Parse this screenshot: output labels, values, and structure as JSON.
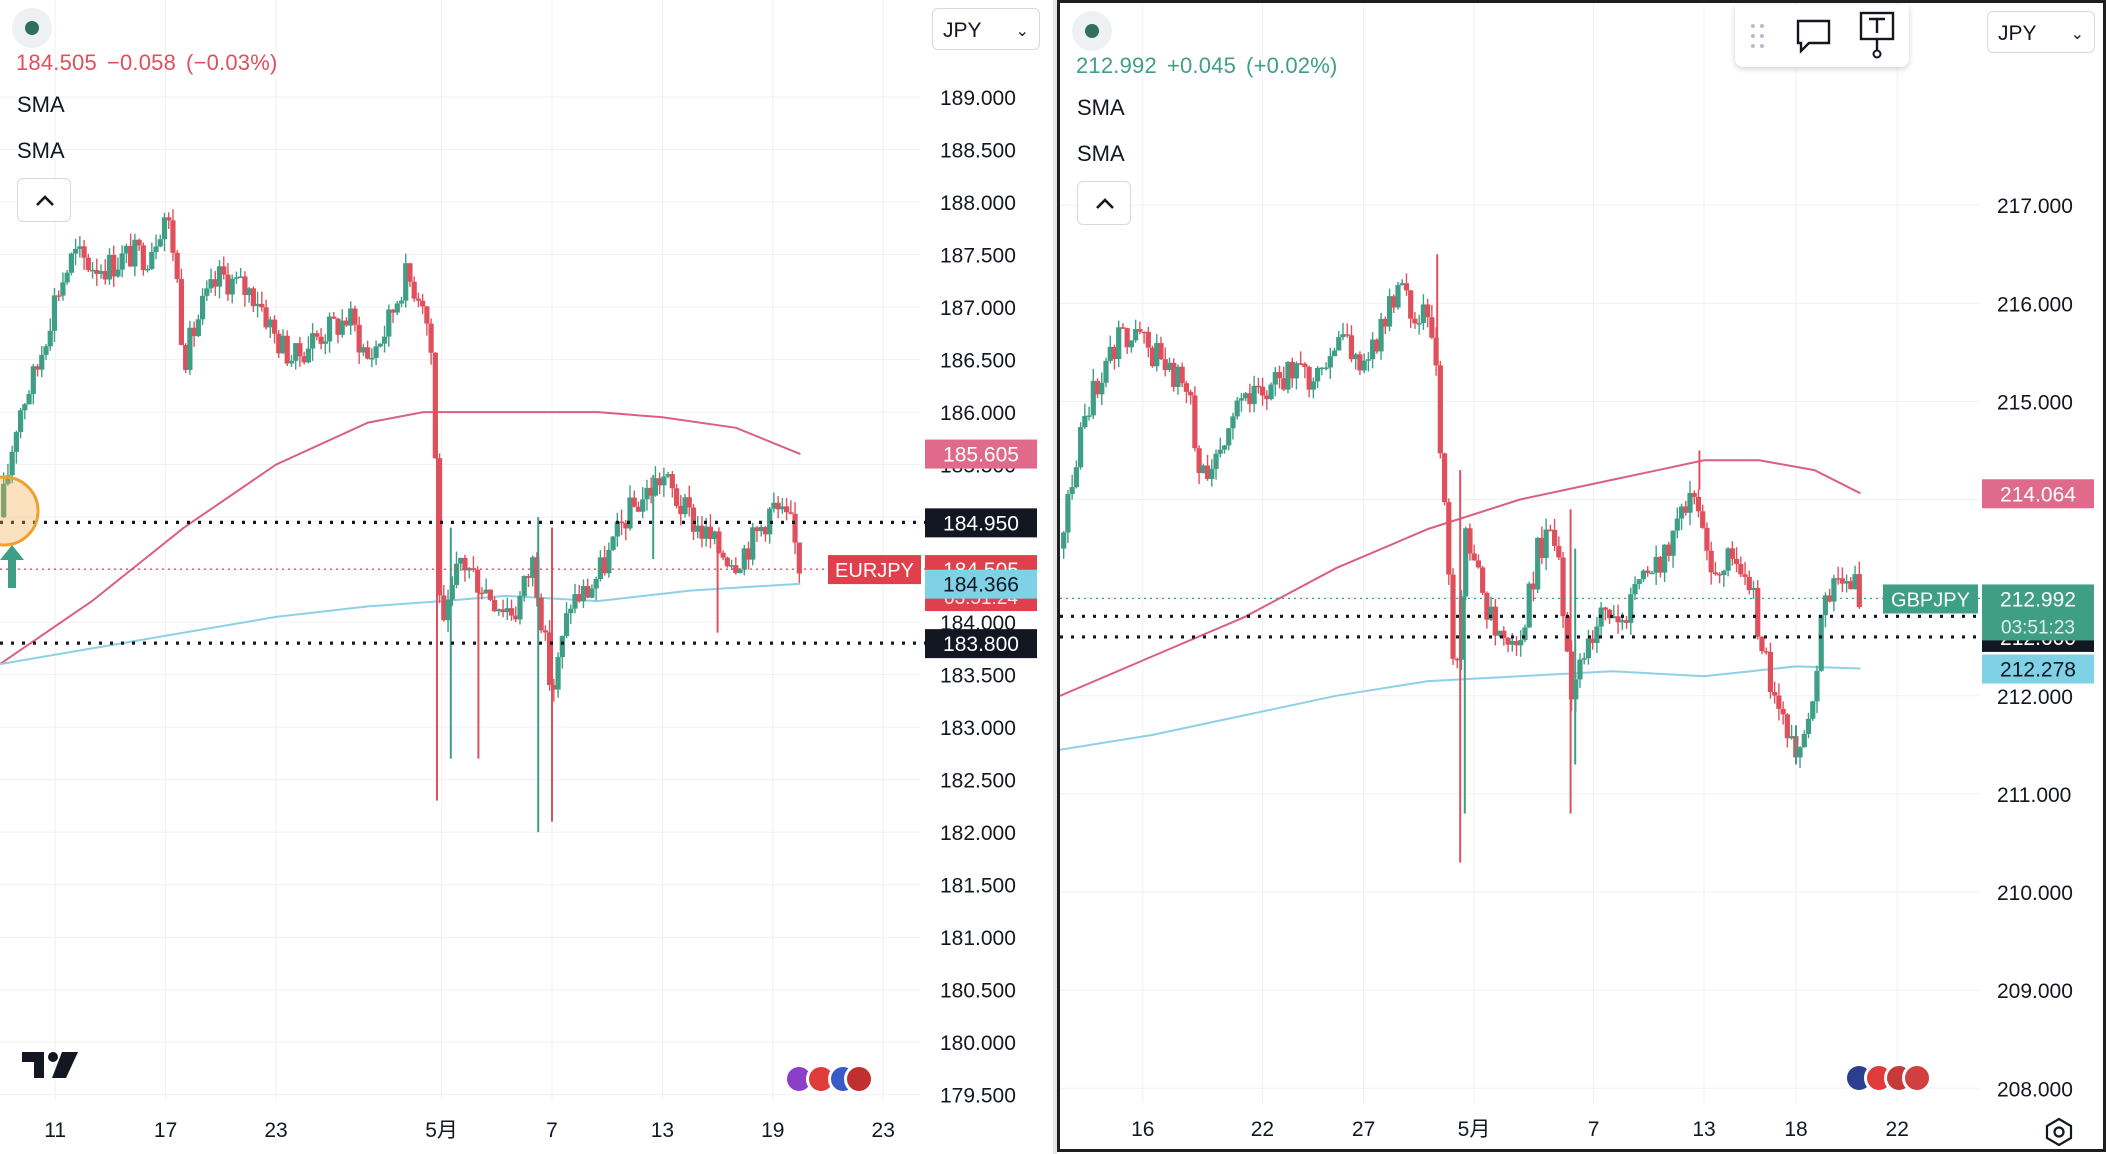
{
  "chart_data": [
    {
      "type": "candlestick",
      "symbol": "EURJPY",
      "currency": "JPY",
      "header": {
        "last": "184.505",
        "change": "−0.058",
        "change_pct": "(−0.03%)"
      },
      "indicators": [
        "SMA",
        "SMA"
      ],
      "y_ticks": [
        "189.000",
        "188.500",
        "188.000",
        "187.500",
        "187.000",
        "186.500",
        "186.000",
        "185.500",
        "185.000",
        "184.500",
        "184.000",
        "183.500",
        "183.000",
        "182.500",
        "182.000",
        "181.500",
        "181.000",
        "180.500",
        "180.000",
        "179.500"
      ],
      "ylim": [
        179.45,
        189.4
      ],
      "x_ticks": [
        {
          "label": "11",
          "pos": 0.06
        },
        {
          "label": "17",
          "pos": 0.18
        },
        {
          "label": "23",
          "pos": 0.3
        },
        {
          "label": "5月",
          "pos": 0.48
        },
        {
          "label": "7",
          "pos": 0.6
        },
        {
          "label": "13",
          "pos": 0.72
        },
        {
          "label": "19",
          "pos": 0.84
        },
        {
          "label": "23",
          "pos": 0.96
        }
      ],
      "path": [
        [
          0.0,
          185.0
        ],
        [
          0.02,
          186.0
        ],
        [
          0.04,
          186.4
        ],
        [
          0.06,
          187.1
        ],
        [
          0.08,
          187.5
        ],
        [
          0.1,
          187.4
        ],
        [
          0.12,
          187.4
        ],
        [
          0.14,
          187.5
        ],
        [
          0.16,
          187.5
        ],
        [
          0.18,
          187.9
        ],
        [
          0.19,
          187.5
        ],
        [
          0.2,
          186.5
        ],
        [
          0.22,
          187.0
        ],
        [
          0.24,
          187.3
        ],
        [
          0.26,
          187.2
        ],
        [
          0.28,
          187.1
        ],
        [
          0.3,
          186.7
        ],
        [
          0.32,
          186.5
        ],
        [
          0.34,
          186.7
        ],
        [
          0.36,
          186.8
        ],
        [
          0.38,
          186.9
        ],
        [
          0.4,
          186.5
        ],
        [
          0.42,
          186.8
        ],
        [
          0.44,
          187.3
        ],
        [
          0.46,
          187.1
        ],
        [
          0.47,
          186.5
        ],
        [
          0.475,
          185.0
        ],
        [
          0.48,
          183.8
        ],
        [
          0.5,
          184.6
        ],
        [
          0.52,
          184.4
        ],
        [
          0.54,
          184.2
        ],
        [
          0.56,
          184.1
        ],
        [
          0.58,
          184.6
        ],
        [
          0.6,
          183.3
        ],
        [
          0.62,
          184.2
        ],
        [
          0.64,
          184.3
        ],
        [
          0.66,
          184.6
        ],
        [
          0.68,
          185.0
        ],
        [
          0.7,
          185.2
        ],
        [
          0.72,
          185.4
        ],
        [
          0.74,
          185.1
        ],
        [
          0.76,
          184.9
        ],
        [
          0.78,
          184.7
        ],
        [
          0.8,
          184.6
        ],
        [
          0.82,
          184.8
        ],
        [
          0.84,
          185.1
        ],
        [
          0.86,
          184.9
        ],
        [
          0.87,
          184.5
        ]
      ],
      "wicks": [
        [
          0.475,
          182.3,
          185.9
        ],
        [
          0.49,
          182.7,
          184.9
        ],
        [
          0.52,
          182.7,
          184.5
        ],
        [
          0.585,
          182.0,
          185.0
        ],
        [
          0.6,
          182.1,
          184.9
        ],
        [
          0.71,
          185.4,
          184.6
        ],
        [
          0.78,
          183.9,
          184.8
        ]
      ],
      "sma_long": [
        [
          0.0,
          183.6
        ],
        [
          0.1,
          184.2
        ],
        [
          0.2,
          184.9
        ],
        [
          0.3,
          185.5
        ],
        [
          0.4,
          185.9
        ],
        [
          0.46,
          186.0
        ],
        [
          0.55,
          186.0
        ],
        [
          0.65,
          186.0
        ],
        [
          0.72,
          185.95
        ],
        [
          0.8,
          185.85
        ],
        [
          0.87,
          185.6
        ]
      ],
      "sma_short": [
        [
          0.0,
          183.6
        ],
        [
          0.1,
          183.75
        ],
        [
          0.2,
          183.9
        ],
        [
          0.3,
          184.05
        ],
        [
          0.4,
          184.15
        ],
        [
          0.48,
          184.2
        ],
        [
          0.55,
          184.25
        ],
        [
          0.65,
          184.2
        ],
        [
          0.75,
          184.3
        ],
        [
          0.87,
          184.366
        ]
      ],
      "hlines": [
        {
          "value": 184.95,
          "label": "184.950"
        },
        {
          "value": 183.8,
          "label": "183.800"
        }
      ],
      "last_line": 184.505,
      "tags": [
        {
          "value": 185.605,
          "label": "185.605",
          "color": "#e06a8c"
        },
        {
          "value": 184.505,
          "label": "184.505",
          "sub": "03:51:24",
          "color": "#e0404c",
          "name": "EURJPY"
        },
        {
          "value": 184.366,
          "label": "184.366",
          "color": "#7fd1e5",
          "textColor": "#131722"
        }
      ]
    },
    {
      "type": "candlestick",
      "symbol": "GBPJPY",
      "currency": "JPY",
      "header": {
        "last": "212.992",
        "change": "+0.045",
        "change_pct": "(+0.02%)"
      },
      "indicators": [
        "SMA",
        "SMA"
      ],
      "y_ticks": [
        "217.000",
        "216.000",
        "215.000",
        "214.000",
        "213.000",
        "212.000",
        "211.000",
        "210.000",
        "209.000",
        "208.000"
      ],
      "ylim": [
        207.85,
        218.5
      ],
      "x_ticks": [
        {
          "label": "16",
          "pos": 0.09
        },
        {
          "label": "22",
          "pos": 0.22
        },
        {
          "label": "27",
          "pos": 0.33
        },
        {
          "label": "5月",
          "pos": 0.45
        },
        {
          "label": "7",
          "pos": 0.58
        },
        {
          "label": "13",
          "pos": 0.7
        },
        {
          "label": "18",
          "pos": 0.8
        },
        {
          "label": "22",
          "pos": 0.91
        }
      ],
      "path": [
        [
          0.0,
          213.5
        ],
        [
          0.02,
          214.6
        ],
        [
          0.04,
          215.2
        ],
        [
          0.06,
          215.6
        ],
        [
          0.08,
          215.7
        ],
        [
          0.1,
          215.5
        ],
        [
          0.12,
          215.3
        ],
        [
          0.14,
          215.1
        ],
        [
          0.15,
          214.2
        ],
        [
          0.17,
          214.5
        ],
        [
          0.19,
          214.9
        ],
        [
          0.21,
          215.0
        ],
        [
          0.23,
          215.2
        ],
        [
          0.25,
          215.3
        ],
        [
          0.27,
          215.2
        ],
        [
          0.29,
          215.5
        ],
        [
          0.31,
          215.7
        ],
        [
          0.33,
          215.3
        ],
        [
          0.35,
          215.8
        ],
        [
          0.37,
          216.1
        ],
        [
          0.4,
          215.8
        ],
        [
          0.41,
          215.2
        ],
        [
          0.42,
          213.5
        ],
        [
          0.43,
          212.0
        ],
        [
          0.44,
          213.6
        ],
        [
          0.46,
          213.0
        ],
        [
          0.48,
          212.6
        ],
        [
          0.5,
          212.5
        ],
        [
          0.52,
          213.5
        ],
        [
          0.54,
          213.6
        ],
        [
          0.555,
          212.0
        ],
        [
          0.57,
          212.5
        ],
        [
          0.59,
          212.8
        ],
        [
          0.61,
          212.7
        ],
        [
          0.63,
          213.1
        ],
        [
          0.65,
          213.3
        ],
        [
          0.67,
          213.7
        ],
        [
          0.69,
          214.1
        ],
        [
          0.7,
          213.5
        ],
        [
          0.71,
          213.2
        ],
        [
          0.73,
          213.4
        ],
        [
          0.75,
          213.2
        ],
        [
          0.76,
          212.6
        ],
        [
          0.78,
          211.8
        ],
        [
          0.8,
          211.5
        ],
        [
          0.81,
          211.6
        ],
        [
          0.82,
          212.2
        ],
        [
          0.83,
          212.9
        ],
        [
          0.84,
          213.1
        ],
        [
          0.86,
          213.2
        ],
        [
          0.87,
          212.99
        ]
      ],
      "wicks": [
        [
          0.435,
          210.3,
          214.3
        ],
        [
          0.44,
          210.8,
          213.7
        ],
        [
          0.555,
          210.8,
          213.9
        ],
        [
          0.56,
          211.3,
          213.5
        ],
        [
          0.695,
          214.1,
          214.5
        ],
        [
          0.8,
          211.3,
          211.7
        ],
        [
          0.41,
          215.5,
          216.5
        ]
      ],
      "sma_long": [
        [
          0.0,
          212.0
        ],
        [
          0.1,
          212.4
        ],
        [
          0.2,
          212.8
        ],
        [
          0.3,
          213.3
        ],
        [
          0.4,
          213.7
        ],
        [
          0.5,
          214.0
        ],
        [
          0.6,
          214.2
        ],
        [
          0.7,
          214.4
        ],
        [
          0.76,
          214.4
        ],
        [
          0.82,
          214.3
        ],
        [
          0.87,
          214.064
        ]
      ],
      "sma_short": [
        [
          0.0,
          211.45
        ],
        [
          0.1,
          211.6
        ],
        [
          0.2,
          211.8
        ],
        [
          0.3,
          212.0
        ],
        [
          0.4,
          212.15
        ],
        [
          0.5,
          212.2
        ],
        [
          0.6,
          212.25
        ],
        [
          0.7,
          212.2
        ],
        [
          0.8,
          212.3
        ],
        [
          0.87,
          212.278
        ]
      ],
      "hlines": [
        {
          "value": 212.81,
          "label": "212.810"
        },
        {
          "value": 212.6,
          "label": "212.600"
        }
      ],
      "last_line": 212.992,
      "tags": [
        {
          "value": 214.064,
          "label": "214.064",
          "color": "#e06a8c"
        },
        {
          "value": 212.992,
          "label": "212.992",
          "sub": "03:51:23",
          "color": "#3f9e86",
          "name": "GBPJPY"
        },
        {
          "value": 212.278,
          "label": "212.278",
          "color": "#7fd1e5",
          "textColor": "#131722"
        }
      ]
    }
  ],
  "colors": {
    "up": "#3f9e86",
    "down": "#e0505c",
    "sma_long": "#d9607e",
    "sma_short": "#8fd0e6",
    "grid": "#f0f1f3"
  },
  "icons": [
    "live-dot-icon",
    "chevron-up-icon",
    "drag-handle-icon",
    "comment-icon",
    "text-pin-icon",
    "tradingview-logo-icon",
    "settings-hex-icon",
    "flag-icons"
  ]
}
